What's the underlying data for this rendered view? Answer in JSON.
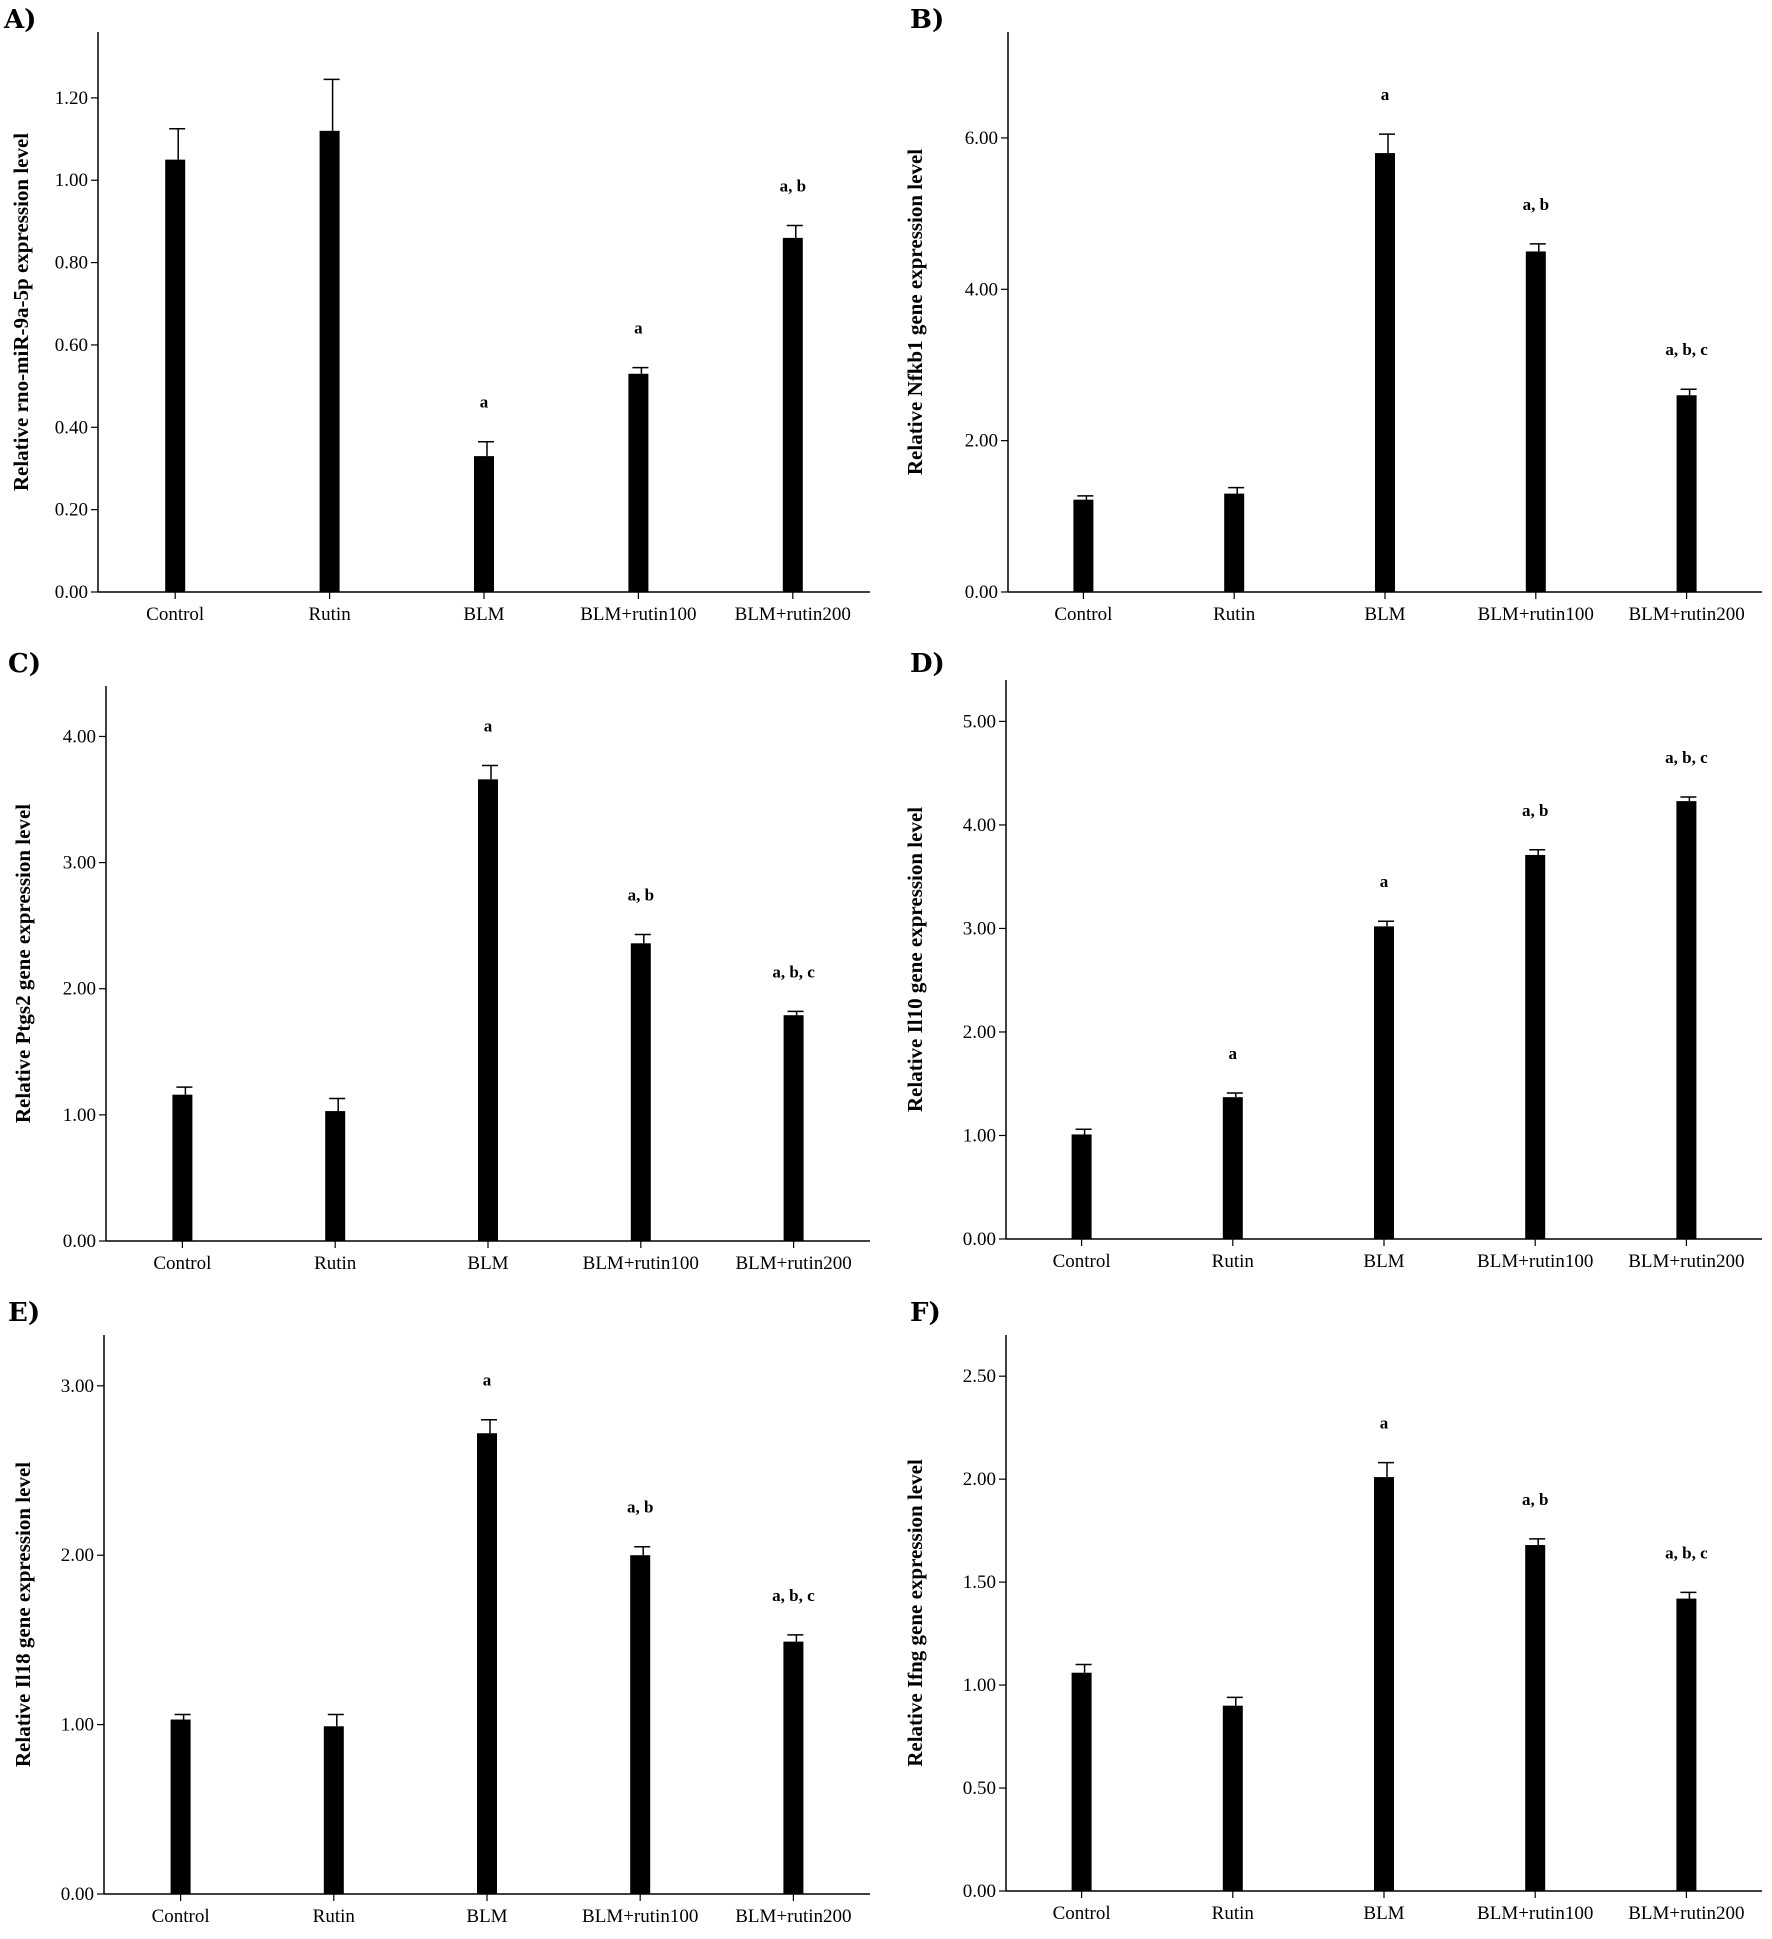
{
  "chart_data": [
    {
      "type": "bar",
      "panel": "A)",
      "ylabel": "Relative rno-miR-9a-5p expression level",
      "ylim": [
        0,
        1.36
      ],
      "yticks": [
        "0.00",
        "0.20",
        "0.40",
        "0.60",
        "0.80",
        "1.00",
        "1.20"
      ],
      "ytick_values": [
        0,
        0.2,
        0.4,
        0.6,
        0.8,
        1.0,
        1.2
      ],
      "categories": [
        "Control",
        "Rutin",
        "BLM",
        "BLM+rutin100",
        "BLM+rutin200"
      ],
      "values": [
        1.05,
        1.12,
        0.33,
        0.53,
        0.86
      ],
      "errors": [
        0.075,
        0.125,
        0.035,
        0.015,
        0.03
      ],
      "labels": [
        "",
        "",
        "a",
        "a",
        "a, b"
      ]
    },
    {
      "type": "bar",
      "panel": "B)",
      "ylabel": "Relative Nfkb1 gene expression level",
      "ylim": [
        0,
        7.4
      ],
      "yticks": [
        "0.00",
        "2.00",
        "4.00",
        "6.00"
      ],
      "ytick_values": [
        0,
        2,
        4,
        6
      ],
      "categories": [
        "Control",
        "Rutin",
        "BLM",
        "BLM+rutin100",
        "BLM+rutin200"
      ],
      "values": [
        1.22,
        1.3,
        5.8,
        4.5,
        2.6
      ],
      "errors": [
        0.05,
        0.08,
        0.25,
        0.1,
        0.08
      ],
      "labels": [
        "",
        "",
        "a",
        "a, b",
        "a, b, c"
      ]
    },
    {
      "type": "bar",
      "panel": "C)",
      "ylabel": "Relative Ptgs2 gene expression level",
      "ylim": [
        0,
        4.4
      ],
      "yticks": [
        "0.00",
        "1.00",
        "2.00",
        "3.00",
        "4.00"
      ],
      "ytick_values": [
        0,
        1,
        2,
        3,
        4
      ],
      "categories": [
        "Control",
        "Rutin",
        "BLM",
        "BLM+rutin100",
        "BLM+rutin200"
      ],
      "values": [
        1.16,
        1.03,
        3.66,
        2.36,
        1.79
      ],
      "errors": [
        0.06,
        0.1,
        0.11,
        0.07,
        0.03
      ],
      "labels": [
        "",
        "",
        "a",
        "a, b",
        "a, b, c"
      ]
    },
    {
      "type": "bar",
      "panel": "D)",
      "ylabel": "Relative Il10 gene expression level",
      "ylim": [
        0,
        5.4
      ],
      "yticks": [
        "0.00",
        "1.00",
        "2.00",
        "3.00",
        "4.00",
        "5.00"
      ],
      "ytick_values": [
        0,
        1,
        2,
        3,
        4,
        5
      ],
      "categories": [
        "Control",
        "Rutin",
        "BLM",
        "BLM+rutin100",
        "BLM+rutin200"
      ],
      "values": [
        1.01,
        1.37,
        3.02,
        3.71,
        4.23
      ],
      "errors": [
        0.05,
        0.04,
        0.05,
        0.05,
        0.04
      ],
      "labels": [
        "",
        "a",
        "a",
        "a, b",
        "a, b, c"
      ]
    },
    {
      "type": "bar",
      "panel": "E)",
      "ylabel": "Relative Il18 gene expression level",
      "ylim": [
        0,
        3.3
      ],
      "yticks": [
        "0.00",
        "1.00",
        "2.00",
        "3.00"
      ],
      "ytick_values": [
        0,
        1,
        2,
        3
      ],
      "categories": [
        "Control",
        "Rutin",
        "BLM",
        "BLM+rutin100",
        "BLM+rutin200"
      ],
      "values": [
        1.03,
        0.99,
        2.72,
        2.0,
        1.49
      ],
      "errors": [
        0.03,
        0.07,
        0.08,
        0.05,
        0.04
      ],
      "labels": [
        "",
        "",
        "a",
        "a, b",
        "a, b, c"
      ]
    },
    {
      "type": "bar",
      "panel": "F)",
      "ylabel": "Relative Ifng gene expression level",
      "ylim": [
        0,
        2.7
      ],
      "yticks": [
        "0.00",
        "0.50",
        "1.00",
        "1.50",
        "2.00",
        "2.50"
      ],
      "ytick_values": [
        0,
        0.5,
        1.0,
        1.5,
        2.0,
        2.5
      ],
      "categories": [
        "Control",
        "Rutin",
        "BLM",
        "BLM+rutin100",
        "BLM+rutin200"
      ],
      "values": [
        1.06,
        0.9,
        2.01,
        1.68,
        1.42
      ],
      "errors": [
        0.04,
        0.04,
        0.07,
        0.03,
        0.03
      ],
      "labels": [
        "",
        "",
        "a",
        "a, b",
        "a, b, c"
      ]
    }
  ]
}
